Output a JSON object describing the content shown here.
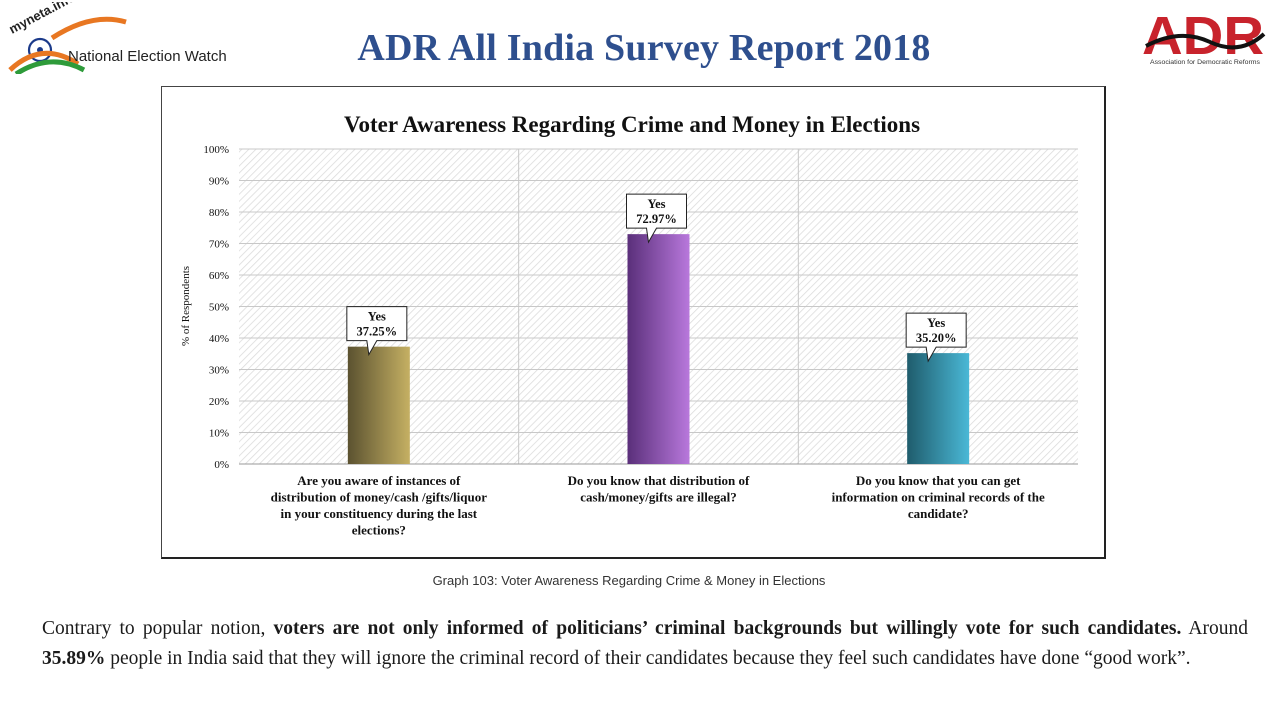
{
  "header": {
    "title": "ADR All India Survey Report 2018",
    "left_logo": {
      "text_top": "myneta.info",
      "text_main": "National Election Watch"
    },
    "right_logo": {
      "text_main": "ADR",
      "text_sub": "Association for Democratic Reforms"
    }
  },
  "chart_data": {
    "type": "bar",
    "title": "Voter Awareness Regarding Crime and Money in Elections",
    "ylabel": "% of Respondents",
    "xlabel": "",
    "ylim": [
      0,
      100
    ],
    "yticks": [
      "0%",
      "10%",
      "20%",
      "30%",
      "40%",
      "50%",
      "60%",
      "70%",
      "80%",
      "90%",
      "100%"
    ],
    "grid": true,
    "legend": "none",
    "categories": [
      "Are you aware of instances of distribution of money/cash /gifts/liquor in your constituency during the last elections?",
      "Do you know that distribution of cash/money/gifts are illegal?",
      "Do you know that you can get information on criminal records of the candidate?"
    ],
    "category_lines": [
      [
        "Are you aware of instances of",
        "distribution of money/cash /gifts/liquor",
        "in your constituency during the last",
        "elections?"
      ],
      [
        "Do you know that distribution of",
        "cash/money/gifts are illegal?"
      ],
      [
        "Do you know that you can get",
        "information on criminal records of the",
        "candidate?"
      ]
    ],
    "values": [
      37.25,
      72.97,
      35.2
    ],
    "data_labels": [
      {
        "answer": "Yes",
        "value": "37.25%"
      },
      {
        "answer": "Yes",
        "value": "72.97%"
      },
      {
        "answer": "Yes",
        "value": "35.20%"
      }
    ],
    "colors": [
      {
        "dark": "#5b5230",
        "light": "#c5b063"
      },
      {
        "dark": "#5a2f7a",
        "light": "#b878dc"
      },
      {
        "dark": "#1f5c6c",
        "light": "#4ab8d6"
      }
    ]
  },
  "caption": "Graph 103: Voter Awareness Regarding Crime & Money in Elections",
  "body": {
    "intro": "Contrary to popular notion, ",
    "bold1": "voters are not only informed of politicians’ criminal backgrounds but willingly vote for such candidates.",
    "mid": " Around ",
    "bold2": "35.89%",
    "rest": " people in India said that they will ignore the criminal record of their candidates because they feel such candidates have done “good work”."
  },
  "colors": {
    "title": "#2e4f8e",
    "adr_red": "#c8232c"
  }
}
